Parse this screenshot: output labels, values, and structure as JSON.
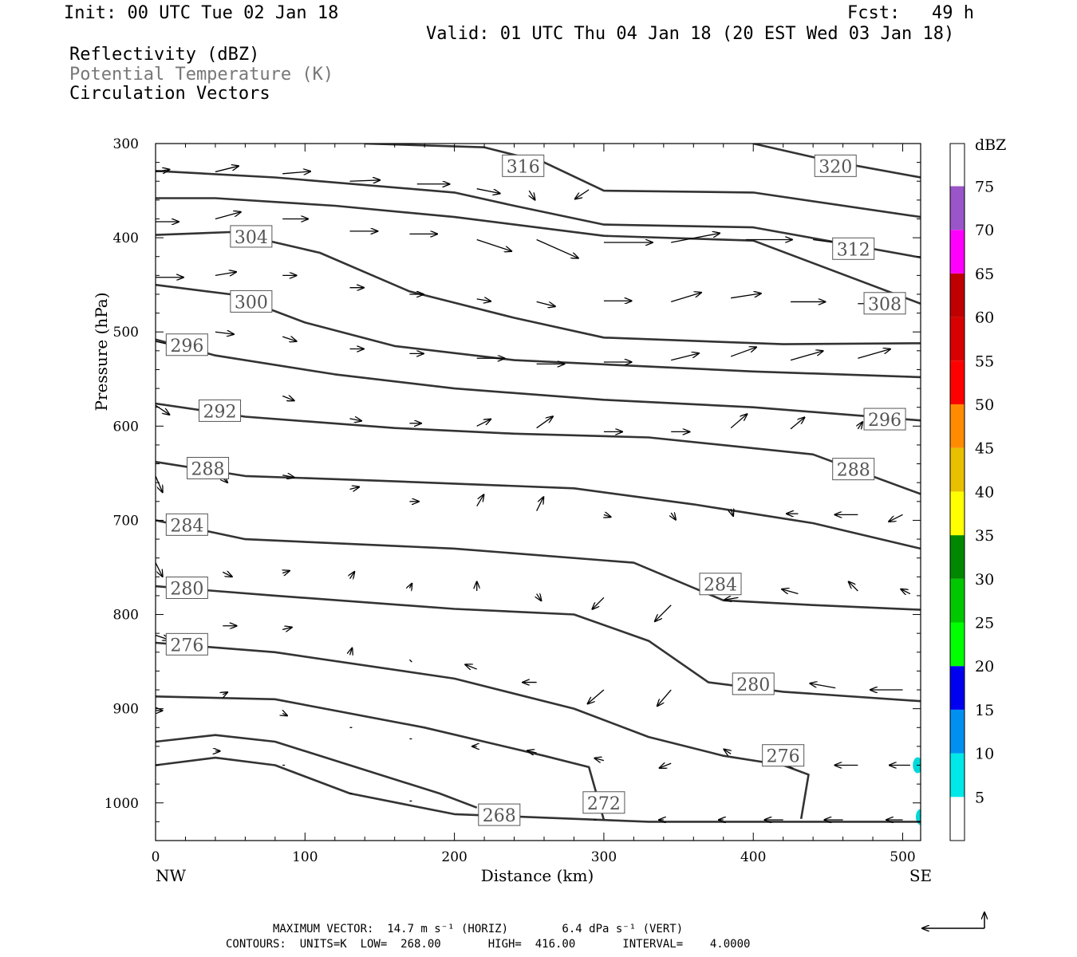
{
  "header": {
    "init": "Init: 00 UTC Tue 02 Jan 18",
    "fcst": "Fcst:   49 h",
    "valid": "Valid: 01 UTC Thu 04 Jan 18 (20 EST Wed 03 Jan 18)",
    "field1": "Reflectivity (dBZ)",
    "field2": "Potential Temperature (K)",
    "field3": "Circulation Vectors"
  },
  "footer": {
    "line1": "MAXIMUM VECTOR:  14.7 m s⁻¹ (HORIZ)        6.4 dPa s⁻¹ (VERT)",
    "line2": "CONTOURS:  UNITS=K  LOW=  268.00       HIGH=  416.00       INTERVAL=    4.0000"
  },
  "colors": {
    "contour": "#333333",
    "label_gray": "#777777",
    "echo": "#00d8d8"
  },
  "chart_data": {
    "type": "contour",
    "xlabel": "Distance (km)",
    "ylabel": "Pressure (hPa)",
    "xlim": [
      0,
      512
    ],
    "ylim": [
      1040,
      300
    ],
    "xticks": [
      0,
      100,
      200,
      300,
      400,
      500
    ],
    "yticks": [
      300,
      400,
      500,
      600,
      700,
      800,
      900,
      1000
    ],
    "x_end_labels": [
      "NW",
      "SE"
    ],
    "colorbar": {
      "title": "dBZ",
      "levels": [
        5,
        10,
        15,
        20,
        25,
        30,
        35,
        40,
        45,
        50,
        55,
        60,
        65,
        70,
        75
      ],
      "colors": [
        "#00e8e8",
        "#0090f0",
        "#0000f0",
        "#00ff00",
        "#00c800",
        "#008800",
        "#ffff00",
        "#e8c000",
        "#ff8c00",
        "#ff0000",
        "#d80000",
        "#c00000",
        "#ff00ff",
        "#9a55c8",
        "#ffffff"
      ]
    },
    "contours": [
      {
        "value": 320,
        "label_at": [
          455,
          324
        ],
        "points": [
          [
            400,
            300
          ],
          [
            450,
            318
          ],
          [
            512,
            336
          ]
        ]
      },
      {
        "value": 316,
        "label_at": [
          246,
          324
        ],
        "points": [
          [
            140,
            300
          ],
          [
            220,
            304
          ],
          [
            260,
            320
          ],
          [
            300,
            350
          ],
          [
            400,
            352
          ],
          [
            512,
            378
          ]
        ]
      },
      {
        "value": 312,
        "label_at": [
          467,
          412
        ],
        "points": [
          [
            0,
            329
          ],
          [
            80,
            336
          ],
          [
            200,
            352
          ],
          [
            240,
            366
          ],
          [
            300,
            386
          ],
          [
            400,
            389
          ],
          [
            512,
            421
          ]
        ]
      },
      {
        "value": 308,
        "label_at": [
          488,
          470
        ],
        "points": [
          [
            0,
            358
          ],
          [
            40,
            358
          ],
          [
            120,
            366
          ],
          [
            200,
            378
          ],
          [
            300,
            398
          ],
          [
            400,
            403
          ],
          [
            512,
            470
          ]
        ]
      },
      {
        "value": 304,
        "label_at": [
          64,
          399
        ],
        "points": [
          [
            0,
            397
          ],
          [
            50,
            394
          ],
          [
            110,
            416
          ],
          [
            170,
            457
          ],
          [
            240,
            485
          ],
          [
            300,
            506
          ],
          [
            420,
            513
          ],
          [
            512,
            512
          ]
        ]
      },
      {
        "value": 300,
        "label_at": [
          64,
          468
        ],
        "points": [
          [
            0,
            450
          ],
          [
            50,
            460
          ],
          [
            100,
            490
          ],
          [
            160,
            515
          ],
          [
            240,
            530
          ],
          [
            400,
            542
          ],
          [
            512,
            548
          ]
        ]
      },
      {
        "value": 296,
        "label_at": [
          21,
          514
        ],
        "points": [
          [
            0,
            508
          ],
          [
            40,
            525
          ],
          [
            120,
            545
          ],
          [
            200,
            560
          ],
          [
            300,
            572
          ],
          [
            400,
            580
          ],
          [
            512,
            594
          ]
        ]
      },
      {
        "value": 296,
        "label_at": [
          488,
          593
        ],
        "points": []
      },
      {
        "value": 292,
        "label_at": [
          43,
          584
        ],
        "points": [
          [
            0,
            576
          ],
          [
            60,
            590
          ],
          [
            160,
            602
          ],
          [
            240,
            608
          ],
          [
            330,
            612
          ],
          [
            440,
            630
          ],
          [
            512,
            672
          ]
        ]
      },
      {
        "value": 288,
        "label_at": [
          35,
          645
        ],
        "points": [
          [
            0,
            638
          ],
          [
            60,
            653
          ],
          [
            150,
            658
          ],
          [
            280,
            666
          ],
          [
            360,
            683
          ],
          [
            440,
            703
          ],
          [
            512,
            730
          ]
        ]
      },
      {
        "value": 288,
        "label_at": [
          467,
          646
        ],
        "points": []
      },
      {
        "value": 284,
        "label_at": [
          21,
          705
        ],
        "points": [
          [
            0,
            700
          ],
          [
            60,
            720
          ],
          [
            200,
            730
          ],
          [
            320,
            745
          ],
          [
            380,
            785
          ],
          [
            440,
            790
          ],
          [
            512,
            795
          ]
        ]
      },
      {
        "value": 284,
        "label_at": [
          378,
          768
        ],
        "points": []
      },
      {
        "value": 280,
        "label_at": [
          21,
          772
        ],
        "points": [
          [
            0,
            770
          ],
          [
            80,
            780
          ],
          [
            200,
            794
          ],
          [
            280,
            800
          ],
          [
            330,
            828
          ],
          [
            370,
            872
          ],
          [
            420,
            882
          ],
          [
            512,
            892
          ]
        ]
      },
      {
        "value": 280,
        "label_at": [
          400,
          874
        ],
        "points": []
      },
      {
        "value": 276,
        "label_at": [
          21,
          832
        ],
        "points": [
          [
            0,
            830
          ],
          [
            80,
            840
          ],
          [
            200,
            868
          ],
          [
            280,
            900
          ],
          [
            330,
            930
          ],
          [
            380,
            950
          ],
          [
            420,
            960
          ],
          [
            437,
            970
          ],
          [
            432,
            1017
          ]
        ]
      },
      {
        "value": 276,
        "label_at": [
          420,
          950
        ],
        "points": []
      },
      {
        "value": 272,
        "label_at": [
          300,
          1000
        ],
        "points": [
          [
            0,
            887
          ],
          [
            80,
            890
          ],
          [
            180,
            920
          ],
          [
            260,
            950
          ],
          [
            290,
            962
          ],
          [
            300,
            1018
          ]
        ]
      },
      {
        "value": 268,
        "label_at": [
          230,
          1013
        ],
        "points": [
          [
            0,
            960
          ],
          [
            40,
            952
          ],
          [
            80,
            960
          ],
          [
            130,
            990
          ],
          [
            200,
            1012
          ],
          [
            330,
            1020
          ],
          [
            512,
            1020
          ]
        ]
      },
      {
        "value": 268,
        "label_at": [
          0,
          0
        ],
        "points": [
          [
            0,
            935
          ],
          [
            40,
            928
          ],
          [
            80,
            935
          ],
          [
            130,
            960
          ],
          [
            190,
            990
          ],
          [
            215,
            1005
          ]
        ]
      }
    ],
    "vectors": [
      [
        0,
        330,
        12,
        -2
      ],
      [
        40,
        330,
        20,
        -5
      ],
      [
        85,
        332,
        24,
        -2
      ],
      [
        130,
        340,
        26,
        -1
      ],
      [
        175,
        343,
        28,
        0
      ],
      [
        215,
        348,
        20,
        4
      ],
      [
        250,
        350,
        5,
        8
      ],
      [
        290,
        349,
        -12,
        8
      ],
      [
        0,
        383,
        20,
        0
      ],
      [
        40,
        380,
        22,
        -6
      ],
      [
        85,
        380,
        22,
        0
      ],
      [
        130,
        393,
        24,
        0
      ],
      [
        170,
        396,
        24,
        0
      ],
      [
        215,
        402,
        30,
        10
      ],
      [
        255,
        402,
        36,
        16
      ],
      [
        300,
        405,
        42,
        0
      ],
      [
        345,
        405,
        42,
        -8
      ],
      [
        395,
        402,
        40,
        0
      ],
      [
        440,
        402,
        44,
        6
      ],
      [
        0,
        442,
        24,
        0
      ],
      [
        40,
        440,
        18,
        -3
      ],
      [
        85,
        440,
        12,
        0
      ],
      [
        130,
        453,
        12,
        0
      ],
      [
        170,
        460,
        12,
        0
      ],
      [
        215,
        465,
        12,
        2
      ],
      [
        255,
        468,
        16,
        4
      ],
      [
        300,
        467,
        24,
        0
      ],
      [
        345,
        468,
        26,
        -8
      ],
      [
        385,
        464,
        26,
        -4
      ],
      [
        425,
        468,
        30,
        0
      ],
      [
        470,
        470,
        26,
        0
      ],
      [
        0,
        510,
        18,
        4
      ],
      [
        40,
        500,
        16,
        2
      ],
      [
        85,
        505,
        12,
        4
      ],
      [
        130,
        518,
        12,
        0
      ],
      [
        170,
        523,
        12,
        0
      ],
      [
        215,
        528,
        24,
        0
      ],
      [
        255,
        534,
        24,
        0
      ],
      [
        300,
        532,
        24,
        0
      ],
      [
        345,
        530,
        24,
        -6
      ],
      [
        385,
        526,
        22,
        -8
      ],
      [
        425,
        530,
        28,
        -8
      ],
      [
        470,
        528,
        28,
        -8
      ],
      [
        0,
        578,
        12,
        8
      ],
      [
        45,
        572,
        8,
        6
      ],
      [
        85,
        568,
        10,
        4
      ],
      [
        130,
        592,
        10,
        2
      ],
      [
        170,
        597,
        10,
        0
      ],
      [
        215,
        600,
        12,
        -6
      ],
      [
        255,
        602,
        14,
        -10
      ],
      [
        300,
        606,
        16,
        0
      ],
      [
        345,
        606,
        16,
        0
      ],
      [
        385,
        602,
        14,
        -12
      ],
      [
        425,
        603,
        12,
        -10
      ],
      [
        470,
        603,
        4,
        -6
      ],
      [
        0,
        653,
        6,
        14
      ],
      [
        45,
        655,
        4,
        4
      ],
      [
        85,
        652,
        10,
        2
      ],
      [
        130,
        667,
        8,
        -2
      ],
      [
        170,
        680,
        8,
        0
      ],
      [
        215,
        685,
        6,
        -10
      ],
      [
        255,
        690,
        6,
        -12
      ],
      [
        300,
        694,
        6,
        2
      ],
      [
        345,
        692,
        4,
        6
      ],
      [
        385,
        688,
        2,
        6
      ],
      [
        430,
        693,
        -10,
        0
      ],
      [
        470,
        694,
        -20,
        0
      ],
      [
        500,
        694,
        -12,
        6
      ],
      [
        0,
        745,
        6,
        12
      ],
      [
        45,
        755,
        8,
        4
      ],
      [
        85,
        756,
        6,
        -2
      ],
      [
        130,
        762,
        4,
        -6
      ],
      [
        170,
        772,
        2,
        -4
      ],
      [
        215,
        775,
        0,
        -8
      ],
      [
        255,
        778,
        4,
        6
      ],
      [
        300,
        782,
        -10,
        10
      ],
      [
        345,
        790,
        -14,
        14
      ],
      [
        390,
        782,
        -12,
        2
      ],
      [
        430,
        778,
        -14,
        -4
      ],
      [
        470,
        775,
        -8,
        -8
      ],
      [
        505,
        778,
        -8,
        -4
      ],
      [
        0,
        822,
        12,
        4
      ],
      [
        45,
        812,
        12,
        0
      ],
      [
        85,
        816,
        8,
        -2
      ],
      [
        130,
        843,
        2,
        -6
      ],
      [
        170,
        848,
        2,
        2
      ],
      [
        215,
        858,
        -10,
        -4
      ],
      [
        255,
        872,
        -12,
        0
      ],
      [
        300,
        880,
        -14,
        12
      ],
      [
        345,
        880,
        -12,
        14
      ],
      [
        410,
        880,
        -12,
        -14
      ],
      [
        455,
        878,
        -22,
        -4
      ],
      [
        500,
        880,
        -28,
        0
      ],
      [
        0,
        902,
        6,
        0
      ],
      [
        45,
        885,
        4,
        -2
      ],
      [
        85,
        905,
        4,
        2
      ],
      [
        130,
        920,
        2,
        0
      ],
      [
        170,
        932,
        2,
        0
      ],
      [
        215,
        940,
        -4,
        0
      ],
      [
        255,
        947,
        -8,
        -2
      ],
      [
        300,
        955,
        -8,
        -2
      ],
      [
        345,
        958,
        -10,
        4
      ],
      [
        385,
        948,
        -6,
        -4
      ],
      [
        430,
        960,
        -10,
        0
      ],
      [
        470,
        960,
        -20,
        0
      ],
      [
        505,
        960,
        -18,
        0
      ],
      [
        40,
        945,
        4,
        0
      ],
      [
        85,
        960,
        2,
        0
      ],
      [
        130,
        990,
        2,
        0
      ],
      [
        170,
        998,
        2,
        0
      ],
      [
        255,
        1018,
        0,
        0
      ],
      [
        295,
        1018,
        -2,
        0
      ],
      [
        340,
        1018,
        -4,
        0
      ],
      [
        380,
        1018,
        -4,
        0
      ],
      [
        420,
        1018,
        -16,
        0
      ],
      [
        460,
        1018,
        -16,
        0
      ],
      [
        500,
        1018,
        -14,
        0
      ]
    ],
    "echo_points": [
      [
        510,
        960
      ],
      [
        512,
        1015
      ]
    ],
    "legend_vector": {
      "horiz_label": "14.7",
      "vert_label": "6.4"
    }
  }
}
